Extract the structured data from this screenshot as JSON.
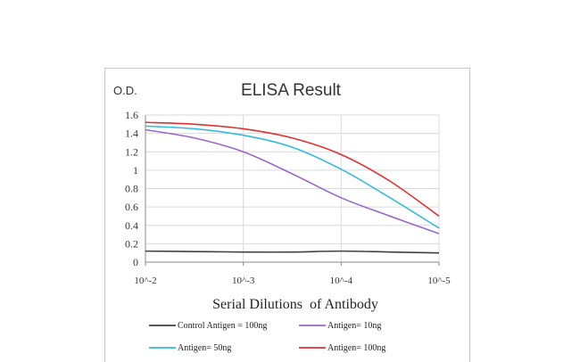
{
  "chart_data": {
    "type": "line",
    "title": "ELISA Result",
    "ylabel": "O.D.",
    "xlabel": "Serial Dilutions  of Antibody",
    "x_ticks": [
      "10^-2",
      "10^-3",
      "10^-4",
      "10^-5"
    ],
    "y_ticks": [
      "1.6",
      "1.4",
      "1.2",
      "1",
      "0.8",
      "0.6",
      "0.4",
      "0.2",
      "0"
    ],
    "ylim": [
      0,
      1.6
    ],
    "x_log_dilution": [
      2,
      2.5,
      3,
      3.5,
      4,
      4.5,
      5
    ],
    "grid": true,
    "legend_position": "bottom",
    "series": [
      {
        "name": "Control Antigen = 100ng",
        "color": "#404040",
        "values": [
          0.12,
          0.115,
          0.11,
          0.11,
          0.12,
          0.11,
          0.1
        ]
      },
      {
        "name": "Antigen= 10ng",
        "color": "#9966cc",
        "values": [
          1.44,
          1.35,
          1.2,
          0.96,
          0.7,
          0.5,
          0.31
        ]
      },
      {
        "name": "Antigen= 50ng",
        "color": "#33bbdd",
        "values": [
          1.48,
          1.45,
          1.38,
          1.25,
          1.01,
          0.7,
          0.37
        ]
      },
      {
        "name": "Antigen= 100ng",
        "color": "#e03030",
        "values": [
          1.52,
          1.5,
          1.45,
          1.35,
          1.17,
          0.88,
          0.5
        ]
      }
    ]
  }
}
